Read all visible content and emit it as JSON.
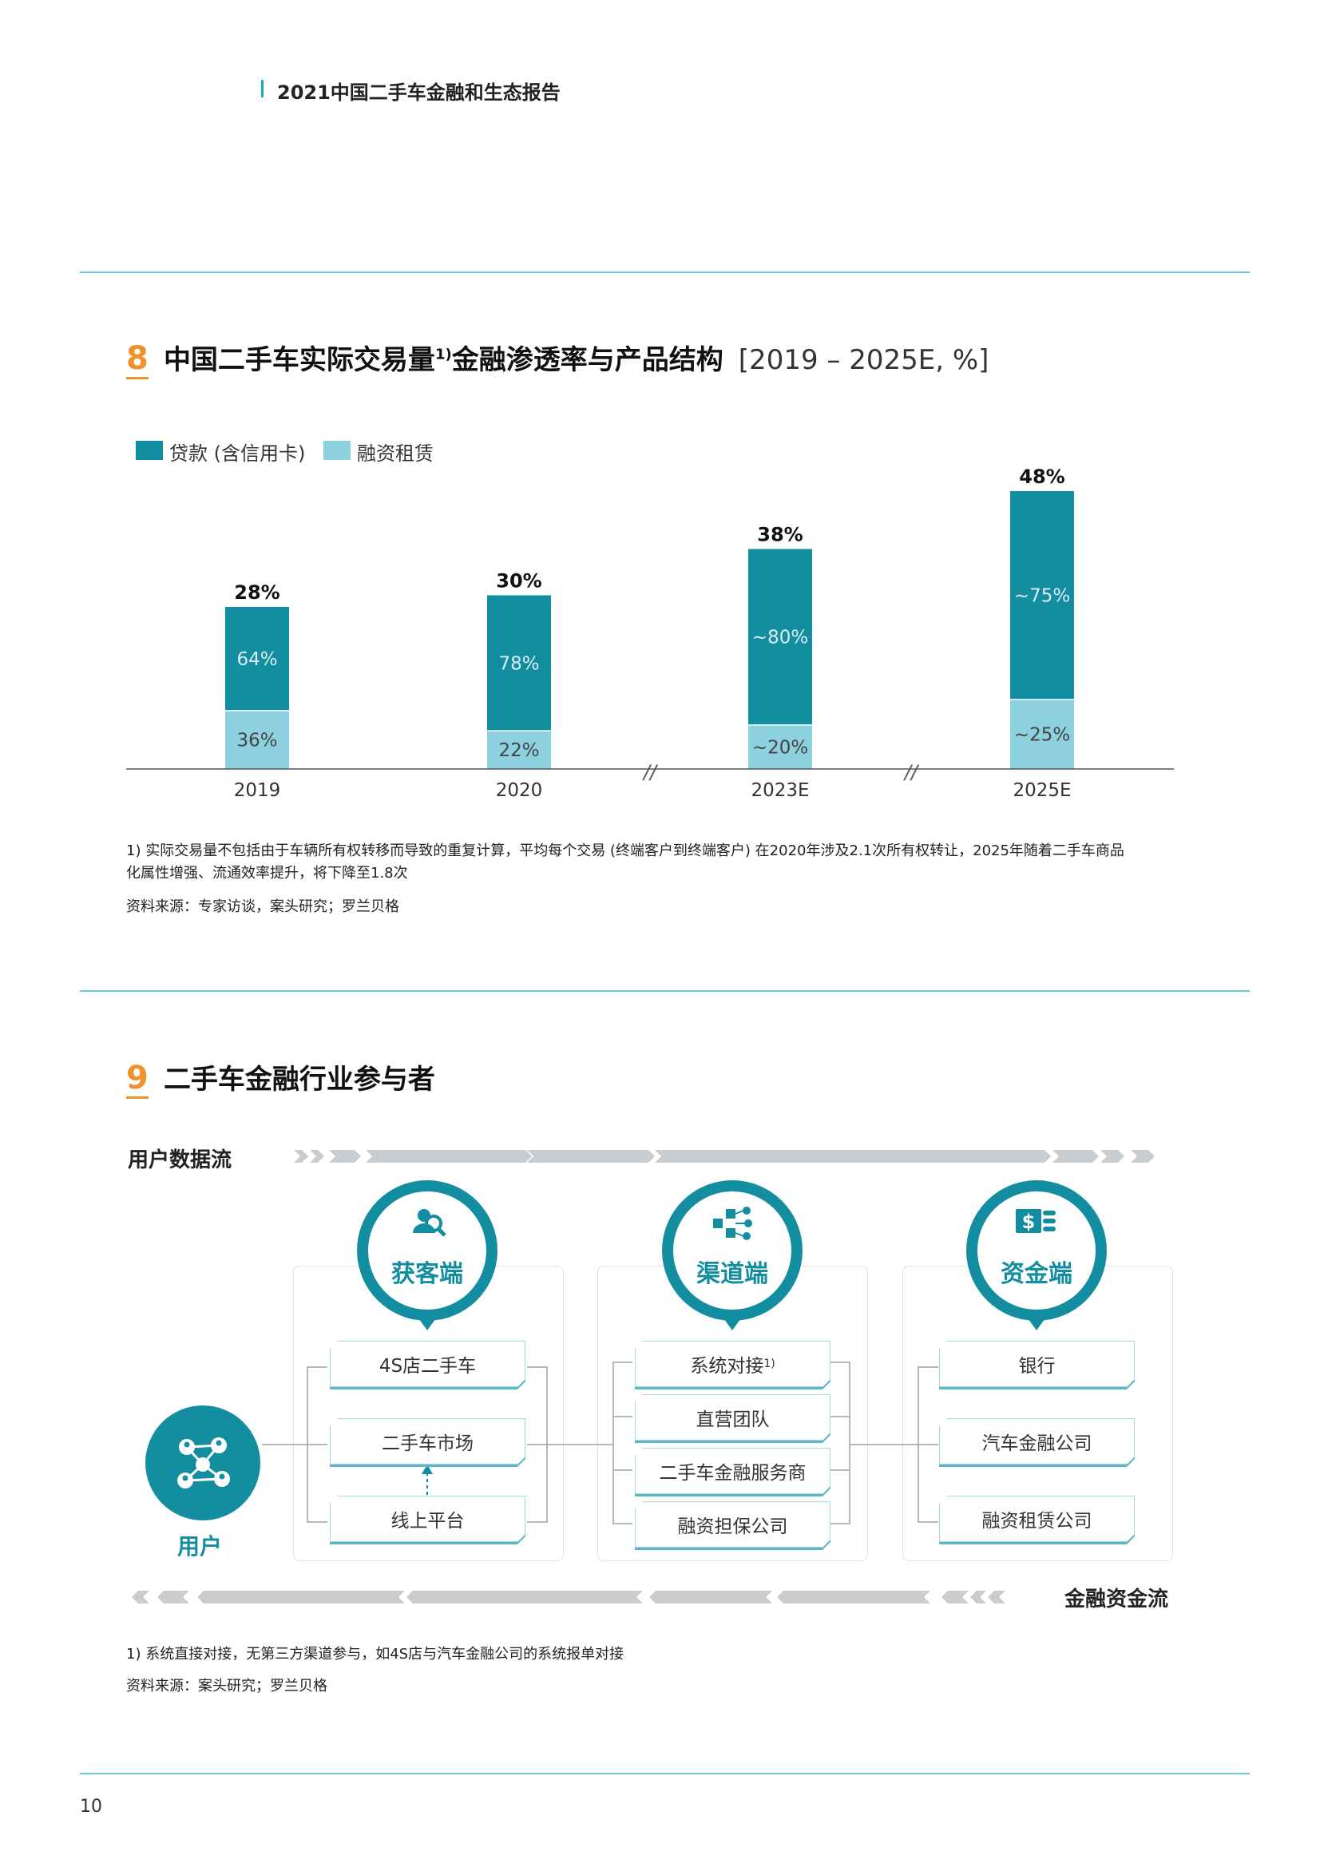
{
  "header": {
    "title": "2021中国二手车金融和生态报告"
  },
  "section8": {
    "number": "8",
    "title": "中国二手车实际交易量",
    "title_sup": "1)",
    "title_tail": "金融渗透率与产品结构",
    "range": "[2019 – 2025E, %]",
    "legend": {
      "loan": "贷款 (含信用卡)",
      "lease": "融资租赁"
    },
    "footnote_line1": "1) 实际交易量不包括由于车辆所有权转移而导致的重复计算，平均每个交易 (终端客户到终端客户) 在2020年涉及2.1次所有权转让，2025年随着二手车商品",
    "footnote_line2": "化属性增强、流通效率提升，将下降至1.8次",
    "source": "资料来源：专家访谈，案头研究；罗兰贝格"
  },
  "chart_data": {
    "type": "bar",
    "stacked": true,
    "categories": [
      "2019",
      "2020",
      "2023E",
      "2025E"
    ],
    "totals": [
      28,
      30,
      38,
      48
    ],
    "total_labels": [
      "28%",
      "30%",
      "38%",
      "48%"
    ],
    "series": [
      {
        "name": "融资租赁",
        "shares": [
          36,
          22,
          20,
          25
        ],
        "labels": [
          "36%",
          "22%",
          "~20%",
          "~25%"
        ],
        "color": "#8dd0e0"
      },
      {
        "name": "贷款 (含信用卡)",
        "shares": [
          64,
          78,
          80,
          75
        ],
        "labels": [
          "64%",
          "78%",
          "~80%",
          "~75%"
        ],
        "color": "#138ea1"
      }
    ],
    "axis_breaks_after": [
      "2020",
      "2023E"
    ],
    "axis_break_label": "//",
    "ylim": [
      0,
      50
    ]
  },
  "section9": {
    "number": "9",
    "title": "二手车金融行业参与者",
    "user_flow": "用户数据流",
    "fund_flow": "金融资金流",
    "user_label": "用户",
    "columns": [
      {
        "title": "获客端",
        "icon": "user-search-icon",
        "items": [
          "4S店二手车",
          "二手车市场",
          "线上平台"
        ]
      },
      {
        "title": "渠道端",
        "icon": "network-distribution-icon",
        "items": [
          "系统对接",
          "直营团队",
          "二手车金融服务商",
          "融资担保公司"
        ],
        "first_sup": "1)"
      },
      {
        "title": "资金端",
        "icon": "money-stack-icon",
        "items": [
          "银行",
          "汽车金融公司",
          "融资租赁公司"
        ]
      }
    ],
    "footnote": "1) 系统直接对接，无第三方渠道参与，如4S店与汽车金融公司的系统报单对接",
    "source": "资料来源：案头研究；罗兰贝格"
  },
  "colors": {
    "teal": "#138ea1",
    "light_teal": "#8dd0e0",
    "orange": "#f0922b",
    "rule": "#6fc6d3"
  },
  "page_number": "10"
}
